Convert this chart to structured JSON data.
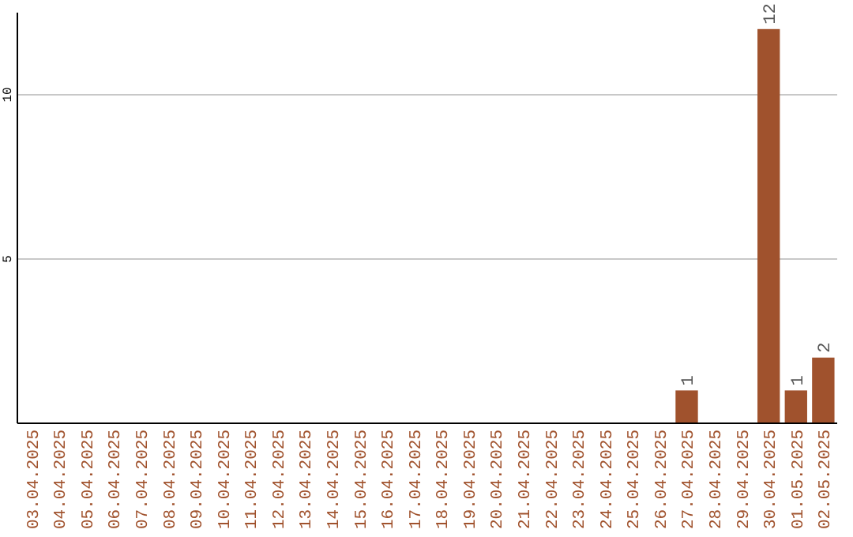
{
  "chart_data": {
    "type": "bar",
    "categories": [
      "03.04.2025",
      "04.04.2025",
      "05.04.2025",
      "06.04.2025",
      "07.04.2025",
      "08.04.2025",
      "09.04.2025",
      "10.04.2025",
      "11.04.2025",
      "12.04.2025",
      "13.04.2025",
      "14.04.2025",
      "15.04.2025",
      "16.04.2025",
      "17.04.2025",
      "18.04.2025",
      "19.04.2025",
      "20.04.2025",
      "21.04.2025",
      "22.04.2025",
      "23.04.2025",
      "24.04.2025",
      "25.04.2025",
      "26.04.2025",
      "27.04.2025",
      "28.04.2025",
      "29.04.2025",
      "30.04.2025",
      "01.05.2025",
      "02.05.2025"
    ],
    "values": [
      0,
      0,
      0,
      0,
      0,
      0,
      0,
      0,
      0,
      0,
      0,
      0,
      0,
      0,
      0,
      0,
      0,
      0,
      0,
      0,
      0,
      0,
      0,
      0,
      1,
      0,
      0,
      12,
      1,
      2
    ],
    "value_labels": [
      null,
      null,
      null,
      null,
      null,
      null,
      null,
      null,
      null,
      null,
      null,
      null,
      null,
      null,
      null,
      null,
      null,
      null,
      null,
      null,
      null,
      null,
      null,
      null,
      "1",
      null,
      null,
      "12",
      "1",
      "2"
    ],
    "color": "#a0522d",
    "ylim": [
      0,
      12.5
    ],
    "yticks": [
      5,
      10
    ],
    "grid": "y"
  }
}
